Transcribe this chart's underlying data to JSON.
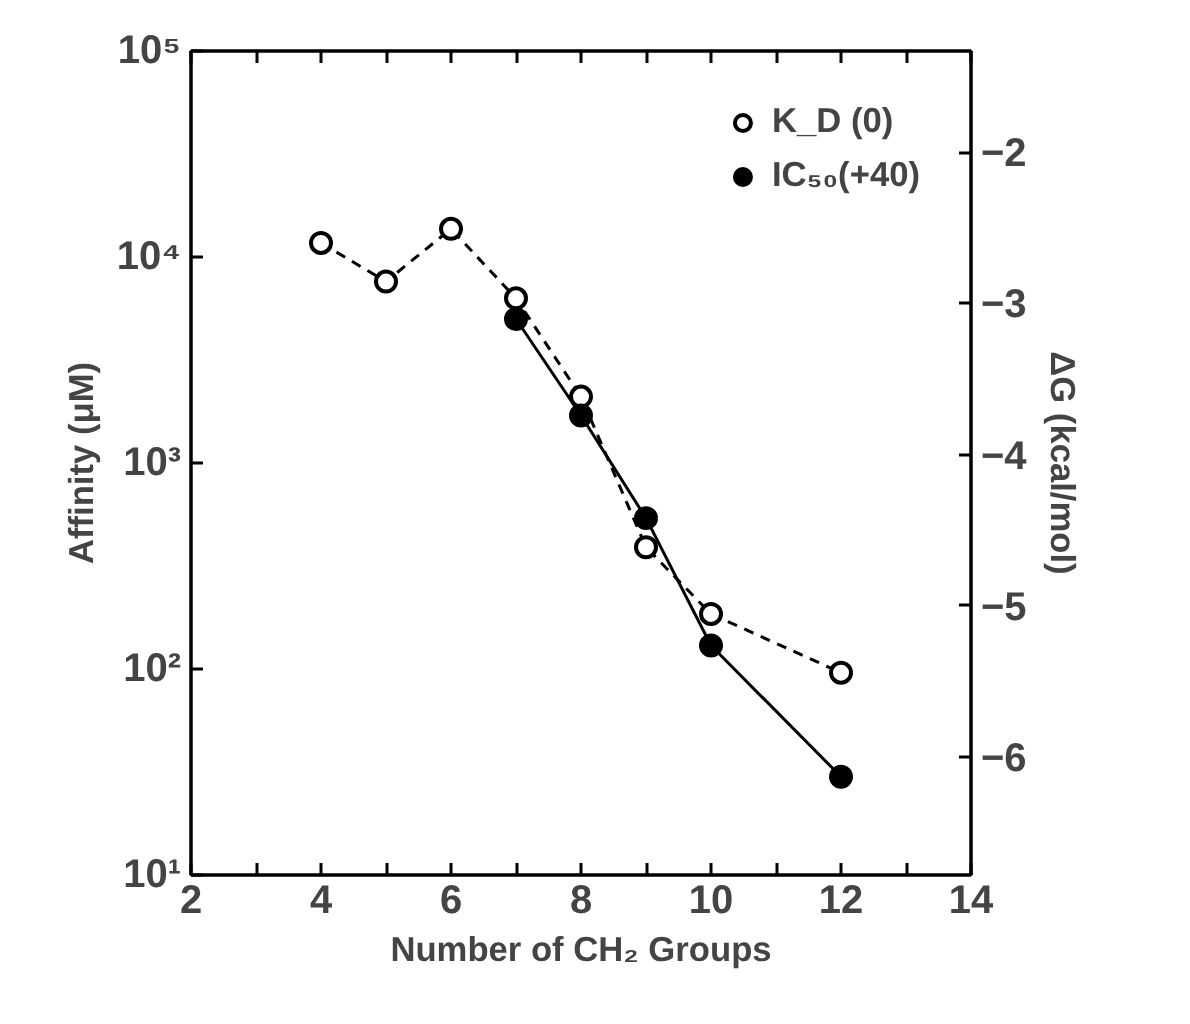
{
  "chart_data": {
    "type": "line",
    "xlabel": "Number of CH₂ Groups",
    "ylabel": "Affinity (μM)",
    "y2label": "ΔG (kcal/mol)",
    "series": [
      {
        "name": "K_D (0)",
        "color": "#000000",
        "line_style": "dashed",
        "x": [
          4,
          5,
          6,
          7,
          8,
          9,
          10,
          12
        ],
        "values": [
          11700,
          7600,
          13700,
          6300,
          2100,
          390,
          185,
          96
        ]
      },
      {
        "name": "IC₅₀(+40)",
        "color": "#000000",
        "line_style": "solid",
        "x": [
          7,
          8,
          9,
          10,
          12
        ],
        "values": [
          5000,
          1700,
          540,
          130,
          30
        ]
      }
    ],
    "log": "y",
    "marker": "circle",
    "legend": "top right",
    "grid": false,
    "xlim": [
      2,
      14
    ],
    "xticks": [
      2,
      {
        "value": 3,
        "label": null
      },
      4,
      {
        "value": 5,
        "label": null
      },
      6,
      {
        "value": 7,
        "label": null
      },
      8,
      {
        "value": 9,
        "label": null
      },
      10,
      {
        "value": 11,
        "label": null
      },
      12,
      {
        "value": 13,
        "label": null
      },
      14
    ],
    "ylim": [
      10,
      100000
    ],
    "yticks": [
      {
        "value": 10,
        "label": "10¹"
      },
      {
        "value": 100,
        "label": "10²"
      },
      {
        "value": 1000,
        "label": "10³"
      },
      {
        "value": 10000,
        "label": "10⁴"
      },
      {
        "value": 100000,
        "label": "10⁵"
      }
    ],
    "y2lim": [
      -6.78,
      -1.33
    ],
    "y2ticks": [
      -2,
      -3,
      -4,
      -5,
      -6
    ]
  }
}
